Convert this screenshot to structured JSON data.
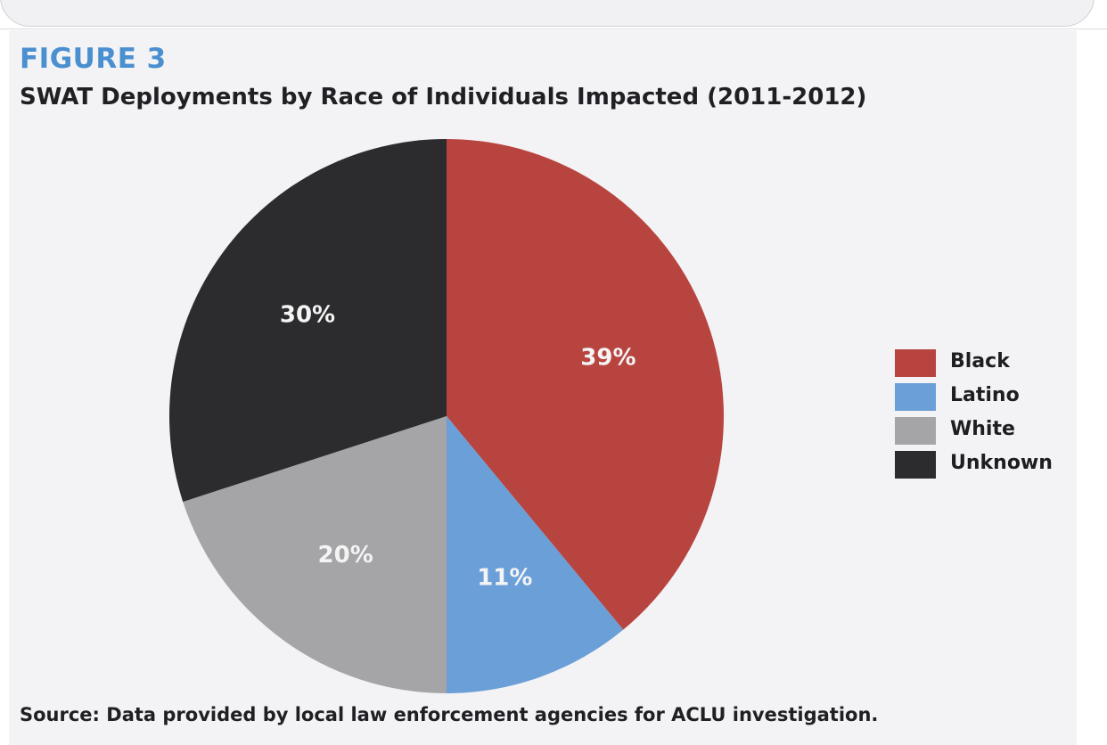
{
  "figure": {
    "label": "FIGURE 3",
    "source": "Source: Data provided by local law enforcement agencies for ACLU investigation."
  },
  "chart_data": {
    "type": "pie",
    "title": "SWAT Deployments by Race of Individuals Impacted (2011-2012)",
    "legend_position": "right",
    "slices": [
      {
        "name": "Black",
        "value": 39,
        "label": "39%",
        "color": "#b8443f"
      },
      {
        "name": "Latino",
        "value": 11,
        "label": "11%",
        "color": "#6b9fd8"
      },
      {
        "name": "White",
        "value": 20,
        "label": "20%",
        "color": "#a5a5a8"
      },
      {
        "name": "Unknown",
        "value": 30,
        "label": "30%",
        "color": "#2c2b2e"
      }
    ]
  }
}
